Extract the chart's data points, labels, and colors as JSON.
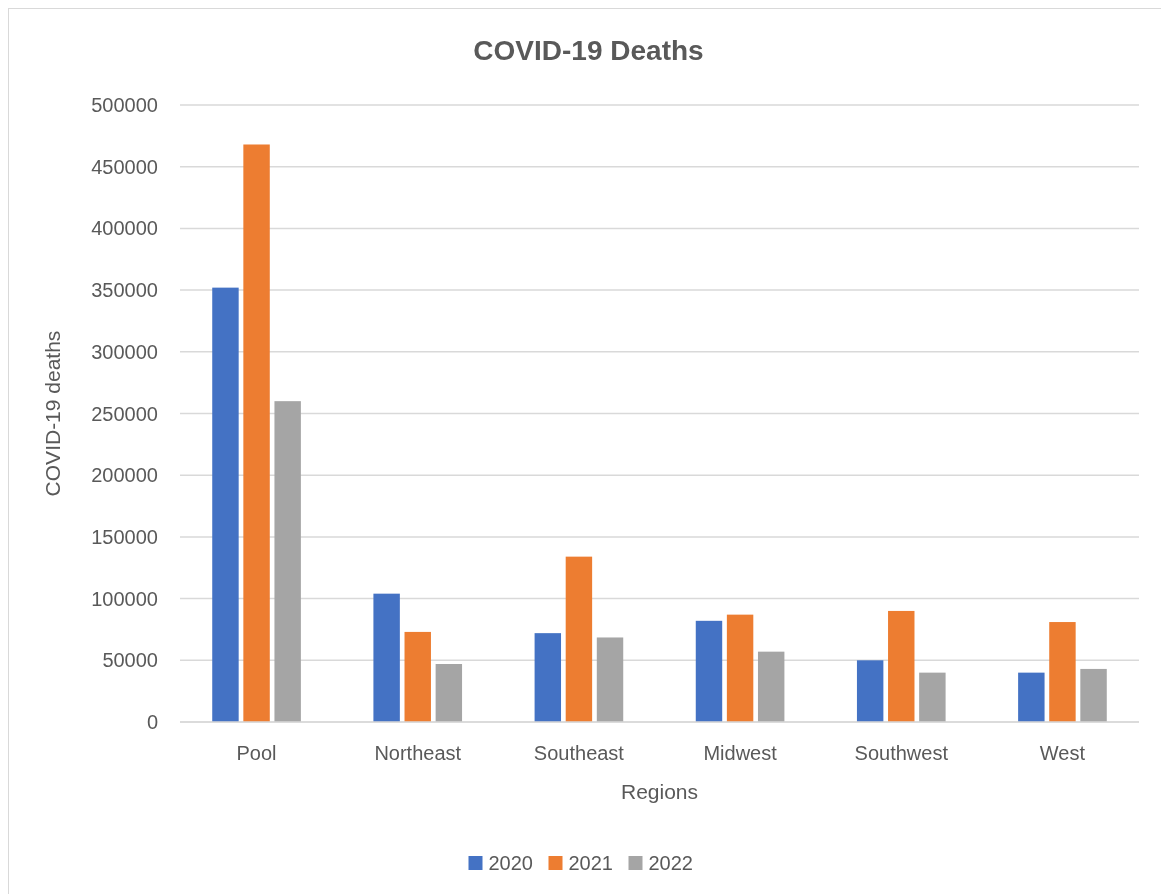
{
  "chart_data": {
    "type": "bar",
    "title": "COVID-19 Deaths",
    "xlabel": "Regions",
    "ylabel": "COVID-19 deaths",
    "categories": [
      "Pool",
      "Northeast",
      "Southeast",
      "Midwest",
      "Southwest",
      "West"
    ],
    "series": [
      {
        "name": "2020",
        "color": "#4472c4",
        "values": [
          352000,
          104000,
          72000,
          82000,
          50000,
          40000
        ]
      },
      {
        "name": "2021",
        "color": "#ed7d31",
        "values": [
          468000,
          73000,
          134000,
          87000,
          90000,
          81000
        ]
      },
      {
        "name": "2022",
        "color": "#a5a5a5",
        "values": [
          260000,
          47000,
          68500,
          57000,
          40000,
          43000
        ]
      }
    ],
    "ylim": [
      0,
      500000
    ],
    "yticks": [
      0,
      50000,
      100000,
      150000,
      200000,
      250000,
      300000,
      350000,
      400000,
      450000,
      500000
    ],
    "grid": "y",
    "legend": "bottom"
  }
}
